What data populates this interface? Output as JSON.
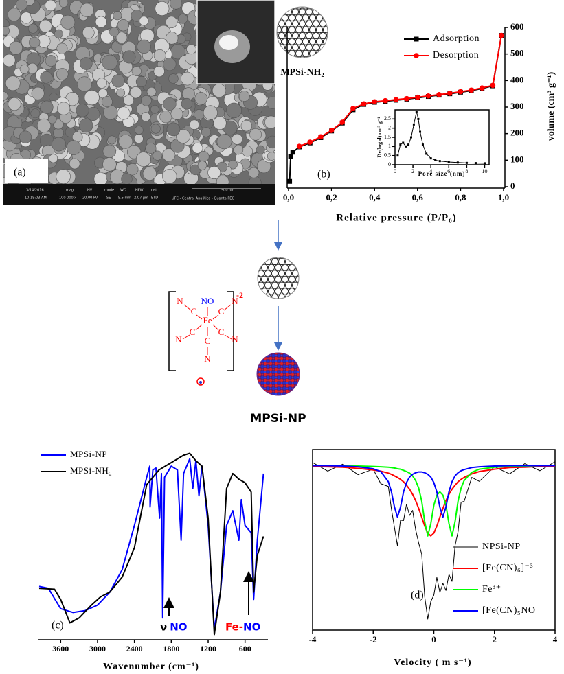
{
  "figure": {
    "panel_labels": [
      "(a)",
      "(b)",
      "(c)",
      "(d)"
    ],
    "sem_bar": {
      "headers": [
        "mag",
        "HV",
        "mode",
        "WD",
        "HFW",
        "det"
      ],
      "date": "3/14/2016",
      "time": "10:19:03 AM",
      "mag": "100 000 x",
      "hv": "20.00 kV",
      "mode": "SE",
      "wd": "9.5 mm",
      "hfw": "2.07 µm",
      "det": "ETD",
      "scale": "500 nm",
      "lab": "UFC - Central Analítica - Quanta FEG"
    },
    "scheme": {
      "precursor": "MPSi-NH₂",
      "product": "MPSi-NP",
      "complex": {
        "metal": "Fe",
        "nitrosyl": "NO",
        "carbon": "C",
        "nitrogen": "N",
        "charge": "-2"
      }
    }
  },
  "chart_data": [
    {
      "type": "line",
      "xlabel": "Relative pressure (P/P₀)",
      "ylabel": "volume (cm³ g⁻¹)",
      "x": [
        0.005,
        0.01,
        0.02,
        0.05,
        0.1,
        0.15,
        0.2,
        0.25,
        0.3,
        0.35,
        0.4,
        0.45,
        0.5,
        0.55,
        0.6,
        0.65,
        0.7,
        0.75,
        0.8,
        0.85,
        0.9,
        0.95,
        0.99
      ],
      "series": [
        {
          "name": "Adsorption",
          "color": "#000000",
          "values": [
            20,
            115,
            130,
            150,
            165,
            185,
            210,
            240,
            290,
            310,
            318,
            322,
            326,
            330,
            335,
            340,
            345,
            350,
            356,
            362,
            370,
            380,
            570
          ]
        },
        {
          "name": "Desorption",
          "color": "#ff0000",
          "values": [
            null,
            null,
            null,
            152,
            168,
            188,
            212,
            243,
            295,
            312,
            320,
            324,
            328,
            332,
            337,
            342,
            347,
            352,
            358,
            364,
            372,
            382,
            570
          ]
        }
      ],
      "xlim": [
        0,
        1
      ],
      "xticks": [
        {
          "value": 0,
          "label": "0,0"
        },
        {
          "value": 0.2,
          "label": "0,2"
        },
        {
          "value": 0.4,
          "label": "0,4"
        },
        {
          "value": 0.6,
          "label": "0,6"
        },
        {
          "value": 0.8,
          "label": "0,8"
        },
        {
          "value": 1,
          "label": "1,0"
        }
      ],
      "ylim": [
        0,
        600
      ],
      "yticks": [
        0,
        100,
        200,
        300,
        400,
        500,
        600
      ],
      "legend": "upper right"
    },
    {
      "type": "line",
      "xlabel": "Pore size (nm)",
      "ylabel": "Dv(log d) cm³ g⁻¹",
      "color": "#000000",
      "x": [
        0.3,
        0.6,
        0.9,
        1.2,
        1.5,
        1.8,
        2.1,
        2.4,
        2.6,
        2.8,
        3.1,
        3.5,
        4,
        4.5,
        5,
        6,
        7,
        8,
        9,
        10
      ],
      "values": [
        0.5,
        1.1,
        1.2,
        1.0,
        1.1,
        1.5,
        2.2,
        2.9,
        2.5,
        1.8,
        1.1,
        0.6,
        0.35,
        0.25,
        0.2,
        0.15,
        0.12,
        0.1,
        0.09,
        0.08
      ],
      "xlim": [
        0,
        10.5
      ],
      "xticks": [
        0,
        2,
        4,
        6,
        8,
        10
      ],
      "ylim": [
        0,
        3
      ],
      "yticks": [
        0,
        0.5,
        1,
        1.5,
        2,
        2.5
      ]
    },
    {
      "type": "line",
      "xlabel": "Wavenumber (cm⁻¹)",
      "series": [
        {
          "name": "MPSi-NP",
          "color": "#0000ff",
          "x": [
            3950,
            3800,
            3600,
            3400,
            3200,
            3000,
            2800,
            2600,
            2400,
            2200,
            2150,
            2145,
            2100,
            2050,
            1990,
            1960,
            1940,
            1910,
            1800,
            1700,
            1640,
            1600,
            1500,
            1450,
            1400,
            1350,
            1300,
            1200,
            1100,
            1000,
            900,
            800,
            700,
            660,
            600,
            500,
            460,
            400,
            300
          ],
          "values": [
            27.5,
            26.5,
            15.7,
            13.7,
            14.7,
            17.6,
            24.5,
            36.3,
            59.8,
            85.3,
            91.2,
            69.6,
            89.2,
            90.2,
            63.7,
            87.3,
            10.8,
            85.3,
            91.2,
            89.2,
            52,
            87.3,
            95.1,
            79.4,
            94.1,
            75.5,
            91.2,
            59.8,
            4.9,
            24.5,
            59.8,
            67.6,
            52,
            73.5,
            59.8,
            55.9,
            20.6,
            52,
            87.3
          ]
        },
        {
          "name": "MPSi-NH₂",
          "color": "#000000",
          "x": [
            3950,
            3700,
            3600,
            3450,
            3300,
            3100,
            2950,
            2800,
            2600,
            2400,
            2200,
            2000,
            1800,
            1600,
            1500,
            1400,
            1300,
            1200,
            1100,
            1000,
            900,
            800,
            700,
            600,
            500,
            460,
            400,
            300
          ],
          "values": [
            26.5,
            26,
            20.6,
            8.2,
            10.8,
            17.6,
            22,
            24.5,
            32.4,
            48,
            81.4,
            89.2,
            93.1,
            97,
            98,
            94.1,
            91.2,
            63.7,
            2,
            24.5,
            79.4,
            87.3,
            84.3,
            82.4,
            77.5,
            24.5,
            44,
            54
          ]
        }
      ],
      "xlim": [
        3950,
        250
      ],
      "xticks": [
        3600,
        3000,
        2400,
        1800,
        1200,
        600
      ],
      "ylim": [
        0,
        100
      ],
      "annotations": [
        [
          "ν",
          "NO"
        ],
        [
          "Fe-",
          "NO"
        ]
      ],
      "legend": "upper left"
    },
    {
      "type": "line",
      "xlabel": "Velocity ( m s⁻¹)",
      "x": [
        -4,
        -3.5,
        -3,
        -2.5,
        -2,
        -1.75,
        -1.5,
        -1.4,
        -1.3,
        -1.2,
        -1.1,
        -1.0,
        -0.9,
        -0.8,
        -0.7,
        -0.6,
        -0.5,
        -0.4,
        -0.3,
        -0.2,
        -0.1,
        0,
        0.1,
        0.2,
        0.3,
        0.4,
        0.5,
        0.6,
        0.7,
        0.8,
        0.9,
        1.0,
        1.25,
        1.5,
        2,
        2.5,
        3,
        3.5,
        4
      ],
      "series": [
        {
          "name": "NPSi-NP",
          "color": "#000000",
          "values": [
            100.7,
            98.5,
            100.3,
            97.6,
            99.0,
            95.3,
            94.6,
            88.9,
            84.2,
            79.5,
            86.0,
            85.9,
            90.1,
            87.2,
            88.5,
            83.6,
            80.2,
            77.4,
            66.5,
            60.8,
            65.3,
            66.9,
            71.4,
            67.6,
            69.9,
            68.1,
            72.2,
            70.4,
            79.5,
            83.1,
            90.6,
            90.8,
            96.9,
            95.9,
            99.6,
            97.8,
            100.4,
            98.6,
            100.9
          ]
        },
        {
          "name": "[Fe(CN)₆]⁻³",
          "color": "#ff0000",
          "values": [
            99.7,
            99.6,
            99.5,
            99.2,
            98.8,
            98.5,
            98.0,
            97.7,
            97.3,
            96.9,
            96.4,
            95.8,
            94.9,
            93.9,
            92.6,
            91.0,
            89.0,
            86.8,
            84.5,
            82.7,
            82.0,
            82.7,
            84.5,
            86.8,
            89.0,
            91.0,
            92.6,
            93.9,
            94.9,
            95.8,
            96.4,
            96.9,
            97.8,
            98.4,
            99.0,
            99.4,
            99.5,
            99.7,
            99.7
          ]
        },
        {
          "name": "Fe³⁺",
          "color": "#00ff00",
          "values": [
            99.9,
            99.9,
            99.9,
            99.8,
            99.7,
            99.6,
            99.5,
            99.4,
            99.3,
            99.1,
            99.0,
            98.7,
            98.4,
            98.0,
            97.3,
            96.1,
            94.2,
            90.9,
            85.6,
            82.0,
            85.1,
            89.8,
            92.4,
            93.2,
            92.4,
            89.8,
            85.1,
            82.0,
            85.6,
            90.9,
            94.2,
            96.1,
            98.2,
            99.0,
            99.5,
            99.7,
            99.8,
            99.9,
            99.9
          ]
        },
        {
          "name": "[Fe(CN)₅NO",
          "color": "#0000ff",
          "values": [
            99.9,
            99.9,
            99.8,
            99.6,
            99.1,
            98.4,
            95.8,
            93.3,
            89.4,
            86.8,
            89.3,
            93.2,
            95.6,
            97.0,
            97.7,
            98.1,
            98.3,
            98.3,
            98.1,
            97.7,
            97.0,
            95.6,
            93.2,
            89.3,
            86.8,
            89.4,
            93.3,
            95.8,
            97.3,
            98.1,
            98.6,
            98.9,
            99.4,
            99.6,
            99.8,
            99.9,
            99.9,
            99.9,
            99.9
          ]
        }
      ],
      "xlim": [
        -4,
        4
      ],
      "xticks": [
        -4,
        -2,
        0,
        2,
        4
      ],
      "ylim": [
        58,
        104
      ],
      "legend": "lower right"
    }
  ]
}
